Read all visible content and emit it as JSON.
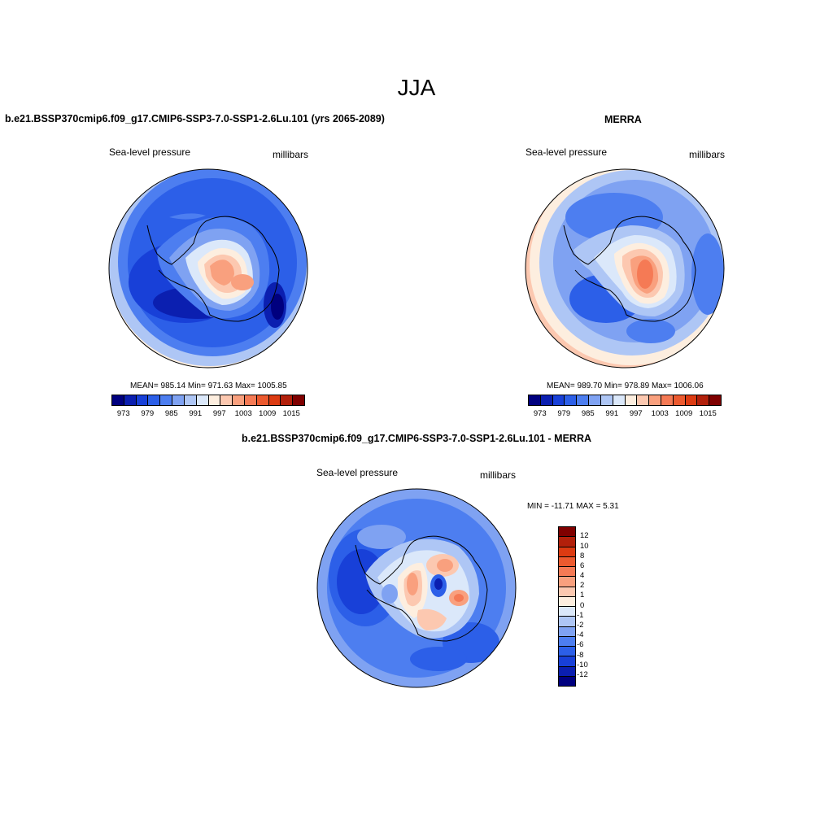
{
  "title": "JJA",
  "panels": [
    {
      "title": "b.e21.BSSP370cmip6.f09_g17.CMIP6-SSP3-7.0-SSP1-2.6Lu.101 (yrs 2065-2089)",
      "left_label": "Sea-level pressure",
      "right_label": "millibars",
      "stats": "MEAN= 985.14  Min= 971.63  Max= 1005.85",
      "colorbar_ticks": [
        "973",
        "979",
        "985",
        "991",
        "997",
        "1003",
        "1009",
        "1015"
      ]
    },
    {
      "title": "MERRA",
      "left_label": "Sea-level pressure",
      "right_label": "millibars",
      "stats": "MEAN= 989.70  Min= 978.89  Max= 1006.06",
      "colorbar_ticks": [
        "973",
        "979",
        "985",
        "991",
        "997",
        "1003",
        "1009",
        "1015"
      ]
    },
    {
      "title": "b.e21.BSSP370cmip6.f09_g17.CMIP6-SSP3-7.0-SSP1-2.6Lu.101 - MERRA",
      "left_label": "Sea-level pressure",
      "right_label": "millibars",
      "stats": "MIN = -11.71 MAX =   5.31",
      "colorbar_ticks": [
        "12",
        "10",
        "8",
        "6",
        "4",
        "2",
        "1",
        "0",
        "-1",
        "-2",
        "-4",
        "-6",
        "-8",
        "-10",
        "-12"
      ]
    }
  ],
  "colors": {
    "abs_palette": [
      "#00007f",
      "#0b1fb0",
      "#1840d8",
      "#2c5fe8",
      "#4d7ef0",
      "#7fa2f2",
      "#aec6f5",
      "#dbe8fa",
      "#fdeedf",
      "#fcc8b0",
      "#f9a07e",
      "#f57a55",
      "#ec5a2f",
      "#dc3b12",
      "#b2200b",
      "#7f0000"
    ],
    "diff_palette": [
      "#7f0000",
      "#b2200b",
      "#dc3b12",
      "#ec5a2f",
      "#f57a55",
      "#f9a07e",
      "#fcc8b0",
      "#fdeedf",
      "#dbe8fa",
      "#aec6f5",
      "#7fa2f2",
      "#4d7ef0",
      "#2c5fe8",
      "#1840d8",
      "#0b1fb0",
      "#00007f"
    ]
  }
}
